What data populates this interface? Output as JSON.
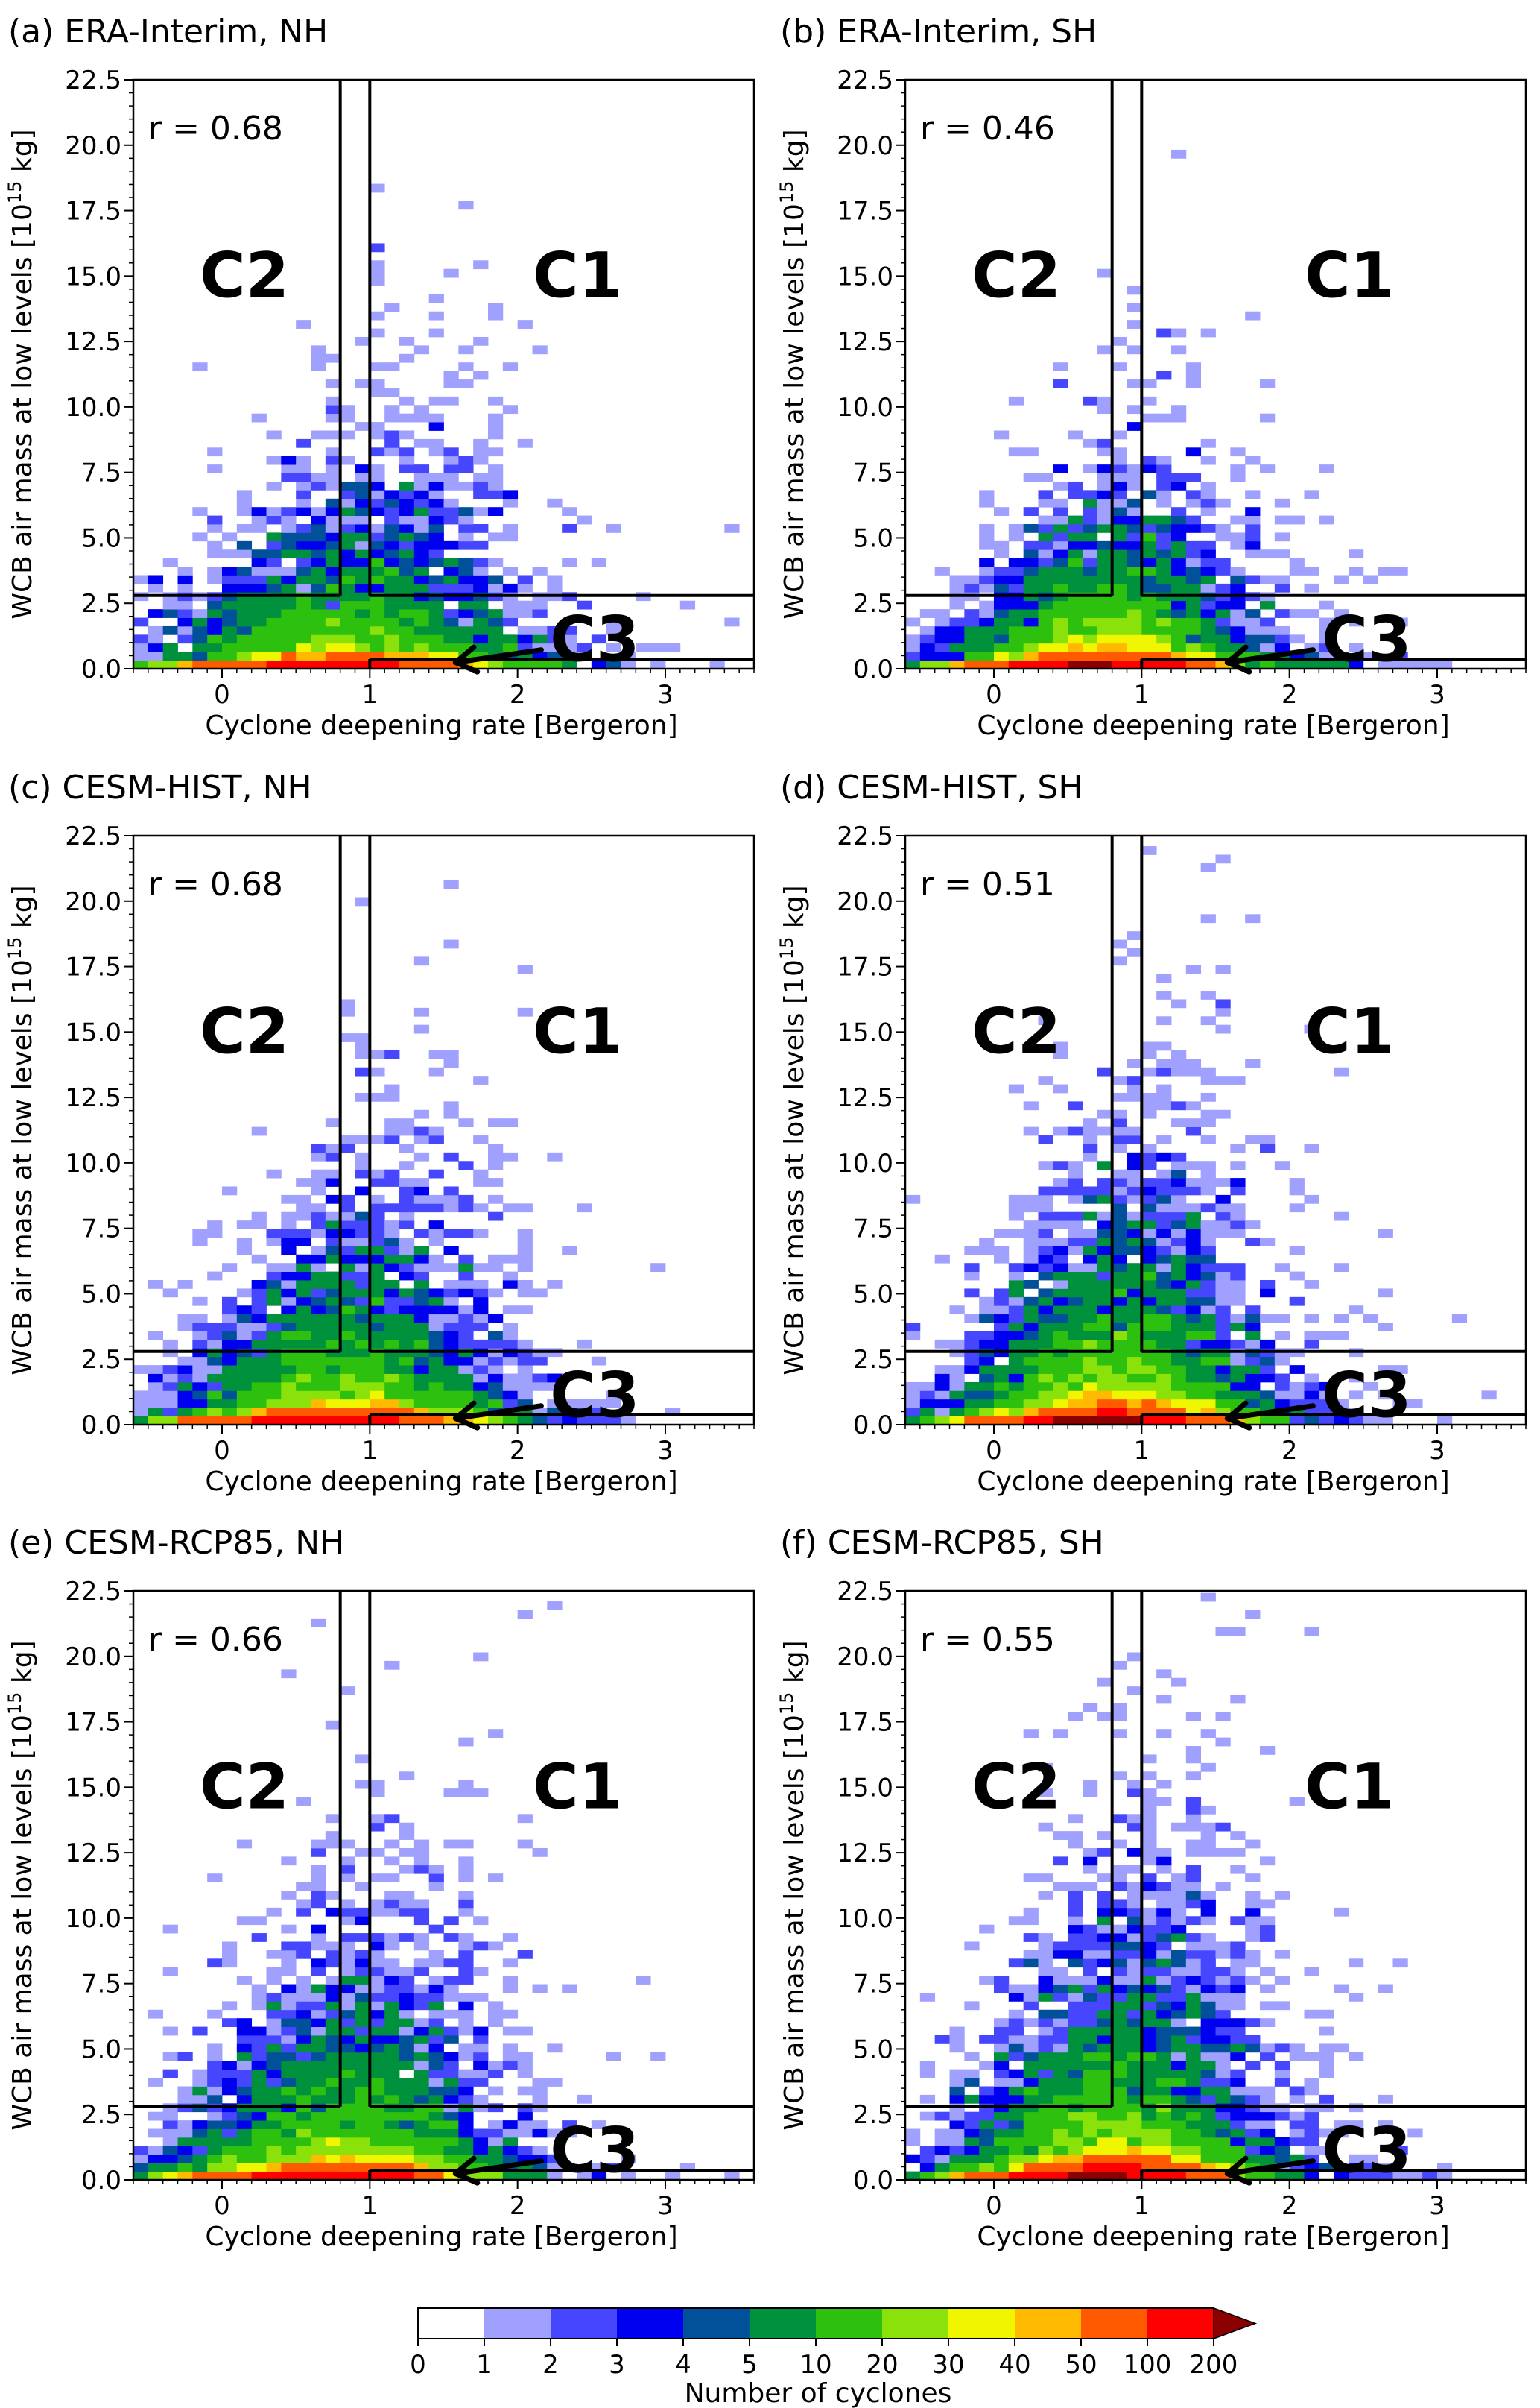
{
  "figure": {
    "colorbar": {
      "label": "Number of cyclones",
      "levels": [
        "0",
        "1",
        "2",
        "3",
        "4",
        "5",
        "10",
        "20",
        "30",
        "40",
        "50",
        "100",
        "200"
      ],
      "colors": [
        "#ffffff",
        "#a0a0ff",
        "#4646ff",
        "#0000f0",
        "#00509a",
        "#00913c",
        "#2dc00f",
        "#8be20a",
        "#f0f500",
        "#ffb900",
        "#ff5a00",
        "#ff0000"
      ],
      "extend_color": "#8b0000"
    },
    "regions": {
      "c1": "C1",
      "c2": "C2",
      "c3": "C3"
    }
  },
  "chart_data": [
    {
      "id": "a",
      "type": "heatmap",
      "title": "(a) ERA-Interim, NH",
      "r_label": "r = 0.68",
      "xlabel": "Cyclone deepening rate [Bergeron]",
      "ylabel": "WCB air mass at low levels [10^15 kg]",
      "xlim": [
        -0.6,
        3.6
      ],
      "ylim": [
        0,
        22.5
      ],
      "xticks": [
        "0",
        "1",
        "2",
        "3"
      ],
      "yticks": [
        "0.0",
        "2.5",
        "5.0",
        "7.5",
        "10.0",
        "12.5",
        "15.0",
        "17.5",
        "20.0",
        "22.5"
      ],
      "bin_x": 0.1,
      "bin_y": 0.325,
      "thresholds": {
        "x_c2": 0.8,
        "x_c1": 1.0,
        "y_high": 2.8,
        "y_low": 0.37
      },
      "distribution": {
        "center_x": 0.85,
        "spread_x": 0.55,
        "scale_y": 2.2,
        "total": 5200,
        "seed": 11,
        "tail_x": 0.35
      }
    },
    {
      "id": "b",
      "type": "heatmap",
      "title": "(b) ERA-Interim, SH",
      "r_label": "r = 0.46",
      "xlabel": "Cyclone deepening rate [Bergeron]",
      "ylabel": "WCB air mass at low levels [10^15 kg]",
      "xlim": [
        -0.6,
        3.6
      ],
      "ylim": [
        0,
        22.5
      ],
      "xticks": [
        "0",
        "1",
        "2",
        "3"
      ],
      "yticks": [
        "0.0",
        "2.5",
        "5.0",
        "7.5",
        "10.0",
        "12.5",
        "15.0",
        "17.5",
        "20.0",
        "22.5"
      ],
      "bin_x": 0.1,
      "bin_y": 0.325,
      "thresholds": {
        "x_c2": 0.8,
        "x_c1": 1.0,
        "y_high": 2.8,
        "y_low": 0.37
      },
      "distribution": {
        "center_x": 0.75,
        "spread_x": 0.45,
        "scale_y": 1.9,
        "total": 6200,
        "seed": 23,
        "tail_x": 0.1
      }
    },
    {
      "id": "c",
      "type": "heatmap",
      "title": "(c) CESM-HIST, NH",
      "r_label": "r = 0.68",
      "xlabel": "Cyclone deepening rate [Bergeron]",
      "ylabel": "WCB air mass at low levels [10^15 kg]",
      "xlim": [
        -0.6,
        3.6
      ],
      "ylim": [
        0,
        22.5
      ],
      "xticks": [
        "0",
        "1",
        "2",
        "3"
      ],
      "yticks": [
        "0.0",
        "2.5",
        "5.0",
        "7.5",
        "10.0",
        "12.5",
        "15.0",
        "17.5",
        "20.0",
        "22.5"
      ],
      "bin_x": 0.1,
      "bin_y": 0.325,
      "thresholds": {
        "x_c2": 0.8,
        "x_c1": 1.0,
        "y_high": 2.8,
        "y_low": 0.37
      },
      "distribution": {
        "center_x": 0.8,
        "spread_x": 0.5,
        "scale_y": 2.4,
        "total": 6000,
        "seed": 37,
        "tail_x": 0.3
      }
    },
    {
      "id": "d",
      "type": "heatmap",
      "title": "(d) CESM-HIST, SH",
      "r_label": "r = 0.51",
      "xlabel": "Cyclone deepening rate [Bergeron]",
      "ylabel": "WCB air mass at low levels [10^15 kg]",
      "xlim": [
        -0.6,
        3.6
      ],
      "ylim": [
        0,
        22.5
      ],
      "xticks": [
        "0",
        "1",
        "2",
        "3"
      ],
      "yticks": [
        "0.0",
        "2.5",
        "5.0",
        "7.5",
        "10.0",
        "12.5",
        "15.0",
        "17.5",
        "20.0",
        "22.5"
      ],
      "bin_x": 0.1,
      "bin_y": 0.325,
      "thresholds": {
        "x_c2": 0.8,
        "x_c1": 1.0,
        "y_high": 2.8,
        "y_low": 0.37
      },
      "distribution": {
        "center_x": 0.8,
        "spread_x": 0.45,
        "scale_y": 2.6,
        "total": 7600,
        "seed": 41,
        "tail_x": 0.15
      }
    },
    {
      "id": "e",
      "type": "heatmap",
      "title": "(e) CESM-RCP85, NH",
      "r_label": "r = 0.66",
      "xlabel": "Cyclone deepening rate [Bergeron]",
      "ylabel": "WCB air mass at low levels [10^15 kg]",
      "xlim": [
        -0.6,
        3.6
      ],
      "ylim": [
        0,
        22.5
      ],
      "xticks": [
        "0",
        "1",
        "2",
        "3"
      ],
      "yticks": [
        "0.0",
        "2.5",
        "5.0",
        "7.5",
        "10.0",
        "12.5",
        "15.0",
        "17.5",
        "20.0",
        "22.5"
      ],
      "bin_x": 0.1,
      "bin_y": 0.325,
      "thresholds": {
        "x_c2": 0.8,
        "x_c1": 1.0,
        "y_high": 2.8,
        "y_low": 0.37
      },
      "distribution": {
        "center_x": 0.8,
        "spread_x": 0.5,
        "scale_y": 2.8,
        "total": 6000,
        "seed": 53,
        "tail_x": 0.3
      }
    },
    {
      "id": "f",
      "type": "heatmap",
      "title": "(f) CESM-RCP85, SH",
      "r_label": "r = 0.55",
      "xlabel": "Cyclone deepening rate [Bergeron]",
      "ylabel": "WCB air mass at low levels [10^15 kg]",
      "xlim": [
        -0.6,
        3.6
      ],
      "ylim": [
        0,
        22.5
      ],
      "xticks": [
        "0",
        "1",
        "2",
        "3"
      ],
      "yticks": [
        "0.0",
        "2.5",
        "5.0",
        "7.5",
        "10.0",
        "12.5",
        "15.0",
        "17.5",
        "20.0",
        "22.5"
      ],
      "bin_x": 0.1,
      "bin_y": 0.325,
      "thresholds": {
        "x_c2": 0.8,
        "x_c1": 1.0,
        "y_high": 2.8,
        "y_low": 0.37
      },
      "distribution": {
        "center_x": 0.8,
        "spread_x": 0.45,
        "scale_y": 3.0,
        "total": 7800,
        "seed": 67,
        "tail_x": 0.15
      }
    }
  ]
}
